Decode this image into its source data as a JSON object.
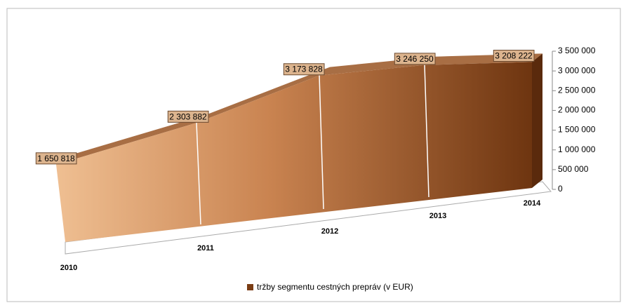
{
  "chart_data": {
    "type": "area3d",
    "categories": [
      "2010",
      "2011",
      "2012",
      "2013",
      "2014"
    ],
    "series": [
      {
        "name": "tržby segmentu cestných prepráv (v EUR)",
        "color": "#7a3c14",
        "values": [
          1650818,
          2303882,
          3173828,
          3246250,
          3208222
        ],
        "value_labels": [
          "1 650 818",
          "2 303 882",
          "3 173 828",
          "3 246 250",
          "3 208 222"
        ]
      }
    ],
    "ylim": [
      0,
      3500000
    ],
    "yticks": [
      0,
      {
        "value": 500000,
        "label": "500 000"
      },
      {
        "value": 1000000,
        "label": "1 000 000"
      },
      {
        "value": 1500000,
        "label": "1 500 000"
      },
      {
        "value": 2000000,
        "label": "2 000 000"
      },
      {
        "value": 2500000,
        "label": "2 500 000"
      },
      {
        "value": 3000000,
        "label": "3 000 000"
      },
      {
        "value": 3500000,
        "label": "3 500 000"
      }
    ],
    "legend": "bottom"
  }
}
